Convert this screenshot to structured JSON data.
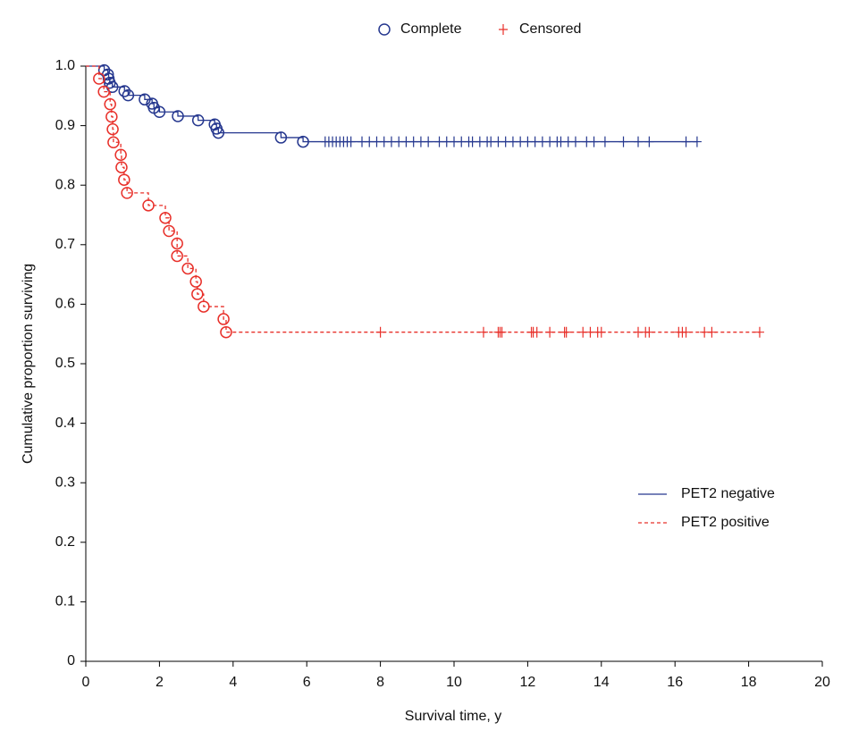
{
  "chart_data": {
    "type": "survival",
    "xlabel": "Survival time, y",
    "ylabel": "Cumulative proportion surviving",
    "xlim": [
      0,
      20
    ],
    "xticks": [
      0,
      2,
      4,
      6,
      8,
      10,
      12,
      14,
      16,
      18,
      20
    ],
    "ylim": [
      0,
      1
    ],
    "yticks": [
      0,
      0.1,
      0.2,
      0.3,
      0.4,
      0.5,
      0.6,
      0.7,
      0.8,
      0.9,
      {
        "value": 1,
        "label": "1.0"
      }
    ],
    "marker_legend": [
      {
        "name": "Complete",
        "symbol": "circle"
      },
      {
        "name": "Censored",
        "symbol": "plus"
      }
    ],
    "legend": "lower right",
    "series": [
      {
        "name": "PET2 negative",
        "color": "#26388f",
        "line_style": "solid",
        "x": [
          0,
          0.5,
          0.6,
          0.62,
          0.65,
          0.72,
          1.05,
          1.15,
          1.6,
          1.8,
          1.85,
          2.0,
          2.5,
          3.05,
          3.5,
          3.55,
          3.6,
          5.3,
          5.9,
          6.5,
          6.6,
          6.7,
          6.8,
          6.9,
          7.0,
          7.1,
          7.2,
          7.5,
          7.7,
          7.9,
          8.1,
          8.3,
          8.5,
          8.7,
          8.9,
          9.1,
          9.3,
          9.6,
          9.8,
          10.0,
          10.2,
          10.4,
          10.5,
          10.7,
          10.9,
          11.0,
          11.2,
          11.4,
          11.6,
          11.8,
          12.0,
          12.2,
          12.4,
          12.6,
          12.8,
          12.9,
          13.1,
          13.3,
          13.6,
          13.8,
          14.1,
          14.6,
          15.0,
          15.3,
          16.3,
          16.6
        ],
        "values": [
          1.0,
          0.993,
          0.986,
          0.979,
          0.972,
          0.965,
          0.958,
          0.951,
          0.944,
          0.937,
          0.93,
          0.923,
          0.916,
          0.909,
          0.902,
          0.895,
          0.888,
          0.88,
          0.873,
          0.873,
          0.873,
          0.873,
          0.873,
          0.873,
          0.873,
          0.873,
          0.873,
          0.873,
          0.873,
          0.873,
          0.873,
          0.873,
          0.873,
          0.873,
          0.873,
          0.873,
          0.873,
          0.873,
          0.873,
          0.873,
          0.873,
          0.873,
          0.873,
          0.873,
          0.873,
          0.873,
          0.873,
          0.873,
          0.873,
          0.873,
          0.873,
          0.873,
          0.873,
          0.873,
          0.873,
          0.873,
          0.873,
          0.873,
          0.873,
          0.873,
          0.873,
          0.873,
          0.873,
          0.873,
          0.873,
          0.873
        ],
        "symbols": [
          null,
          "circle",
          "circle",
          "circle",
          "circle",
          "circle",
          "circle",
          "circle",
          "circle",
          "circle",
          "circle",
          "circle",
          "circle",
          "circle",
          "circle",
          "circle",
          "circle",
          "circle",
          "circle",
          "plus",
          "plus",
          "plus",
          "plus",
          "plus",
          "plus",
          "plus",
          "plus",
          "plus",
          "plus",
          "plus",
          "plus",
          "plus",
          "plus",
          "plus",
          "plus",
          "plus",
          "plus",
          "plus",
          "plus",
          "plus",
          "plus",
          "plus",
          "plus",
          "plus",
          "plus",
          "plus",
          "plus",
          "plus",
          "plus",
          "plus",
          "plus",
          "plus",
          "plus",
          "plus",
          "plus",
          "plus",
          "plus",
          "plus",
          "plus",
          "plus",
          "plus",
          "plus",
          "plus",
          "plus",
          "plus",
          "plus"
        ]
      },
      {
        "name": "PET2 positive",
        "color": "#e8302a",
        "line_style": "dashed",
        "x": [
          0,
          0.36,
          0.49,
          0.66,
          0.7,
          0.73,
          0.75,
          0.95,
          0.97,
          1.04,
          1.12,
          1.7,
          2.16,
          2.26,
          2.48,
          2.48,
          2.77,
          2.99,
          3.03,
          3.2,
          3.74,
          3.81,
          8.0,
          10.8,
          11.2,
          11.25,
          11.3,
          12.1,
          12.15,
          12.25,
          12.6,
          13.0,
          13.05,
          13.5,
          13.7,
          13.9,
          14.0,
          15.0,
          15.2,
          15.3,
          16.1,
          16.2,
          16.3,
          16.8,
          17.0,
          18.3
        ],
        "values": [
          1.0,
          0.979,
          0.957,
          0.936,
          0.915,
          0.894,
          0.872,
          0.851,
          0.83,
          0.809,
          0.787,
          0.766,
          0.745,
          0.723,
          0.702,
          0.681,
          0.66,
          0.638,
          0.617,
          0.596,
          0.575,
          0.553,
          0.553,
          0.553,
          0.553,
          0.553,
          0.553,
          0.553,
          0.553,
          0.553,
          0.553,
          0.553,
          0.553,
          0.553,
          0.553,
          0.553,
          0.553,
          0.553,
          0.553,
          0.553,
          0.553,
          0.553,
          0.553,
          0.553,
          0.553,
          0.553
        ],
        "symbols": [
          null,
          "circle",
          "circle",
          "circle",
          "circle",
          "circle",
          "circle",
          "circle",
          "circle",
          "circle",
          "circle",
          "circle",
          "circle",
          "circle",
          "circle",
          "circle",
          "circle",
          "circle",
          "circle",
          "circle",
          "circle",
          "circle",
          "plus",
          "plus",
          "plus",
          "plus",
          "plus",
          "plus",
          "plus",
          "plus",
          "plus",
          "plus",
          "plus",
          "plus",
          "plus",
          "plus",
          "plus",
          "plus",
          "plus",
          "plus",
          "plus",
          "plus",
          "plus",
          "plus",
          "plus",
          "plus"
        ]
      }
    ]
  }
}
